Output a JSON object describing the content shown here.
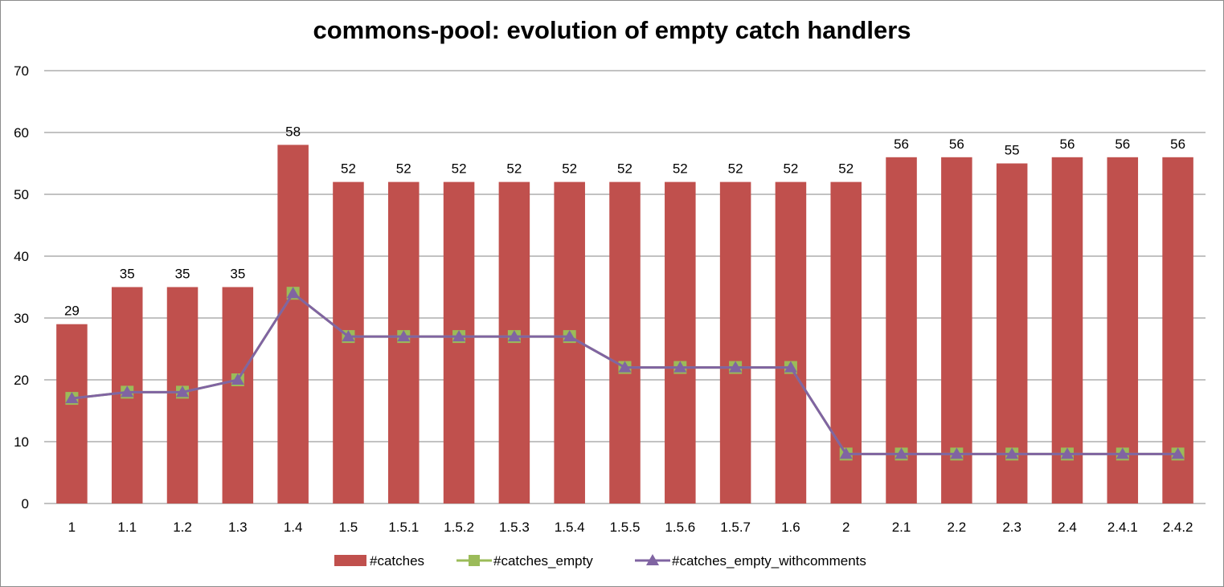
{
  "chart_data": {
    "type": "bar",
    "title": "commons-pool: evolution of empty catch handlers",
    "xlabel": "",
    "ylabel": "",
    "ylim": [
      0,
      70
    ],
    "yticks": [
      0,
      10,
      20,
      30,
      40,
      50,
      60,
      70
    ],
    "grid": true,
    "legend_position": "bottom",
    "categories": [
      "1",
      "1.1",
      "1.2",
      "1.3",
      "1.4",
      "1.5",
      "1.5.1",
      "1.5.2",
      "1.5.3",
      "1.5.4",
      "1.5.5",
      "1.5.6",
      "1.5.7",
      "1.6",
      "2",
      "2.1",
      "2.2",
      "2.3",
      "2.4",
      "2.4.1",
      "2.4.2"
    ],
    "series": [
      {
        "name": "#catches",
        "kind": "bar",
        "color": "#c0504d",
        "show_labels": true,
        "values": [
          29,
          35,
          35,
          35,
          58,
          52,
          52,
          52,
          52,
          52,
          52,
          52,
          52,
          52,
          52,
          56,
          56,
          55,
          56,
          56,
          56
        ]
      },
      {
        "name": "#catches_empty",
        "kind": "line",
        "marker": "square",
        "color": "#9bbb59",
        "values": [
          17,
          18,
          18,
          20,
          34,
          27,
          27,
          27,
          27,
          27,
          22,
          22,
          22,
          22,
          8,
          8,
          8,
          8,
          8,
          8,
          8
        ]
      },
      {
        "name": "#catches_empty_withcomments",
        "kind": "line",
        "marker": "triangle",
        "color": "#8064a2",
        "values": [
          17,
          18,
          18,
          20,
          34,
          27,
          27,
          27,
          27,
          27,
          22,
          22,
          22,
          22,
          8,
          8,
          8,
          8,
          8,
          8,
          8
        ]
      }
    ]
  }
}
